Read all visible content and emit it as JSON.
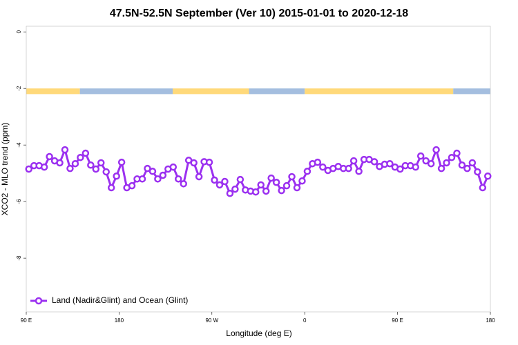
{
  "chart_data": {
    "type": "line",
    "title": "47.5N-52.5N September (Ver 10)   2015-01-01 to 2020-12-18",
    "xlabel": "Longitude (deg E)",
    "ylabel": "XCO2 - MLO trend (ppm)",
    "xlim": [
      90,
      540
    ],
    "ylim": [
      -9.9,
      0.2
    ],
    "xticks": [
      {
        "value": 90,
        "label": "90 E"
      },
      {
        "value": 180,
        "label": "180"
      },
      {
        "value": 270,
        "label": "90 W"
      },
      {
        "value": 360,
        "label": "0"
      },
      {
        "value": 450,
        "label": "90 E"
      },
      {
        "value": 540,
        "label": "180"
      }
    ],
    "yticks": [
      0,
      -2,
      -4,
      -6,
      -8
    ],
    "legend": "lower left",
    "strip": {
      "ylim": [
        -2.2,
        -2
      ],
      "segments": [
        {
          "start": 90,
          "end": 142,
          "color": "#ffd97a"
        },
        {
          "start": 142,
          "end": 232,
          "color": "#a4bedf"
        },
        {
          "start": 232,
          "end": 306,
          "color": "#ffd97a"
        },
        {
          "start": 306,
          "end": 360,
          "color": "#a4bedf"
        },
        {
          "start": 360,
          "end": 504,
          "color": "#ffd97a"
        },
        {
          "start": 504,
          "end": 540,
          "color": "#a4bedf"
        }
      ]
    },
    "x": [
      92.5,
      97.5,
      102.5,
      107.5,
      112.5,
      117.5,
      122.5,
      127.5,
      132.5,
      137.5,
      142.5,
      147.5,
      152.5,
      157.5,
      162.5,
      167.5,
      172.5,
      177.5,
      182.5,
      187.5,
      192.5,
      197.5,
      202.5,
      207.5,
      212.5,
      217.5,
      222.5,
      227.5,
      232.5,
      237.5,
      242.5,
      247.5,
      252.5,
      257.5,
      262.5,
      267.5,
      272.5,
      277.5,
      282.5,
      287.5,
      292.5,
      297.5,
      302.5,
      307.5,
      312.5,
      317.5,
      322.5,
      327.5,
      332.5,
      337.5,
      342.5,
      347.5,
      352.5,
      357.5,
      362.5,
      367.5,
      372.5,
      377.5,
      382.5,
      387.5,
      392.5,
      397.5,
      402.5,
      407.5,
      412.5,
      417.5,
      422.5,
      427.5,
      432.5,
      437.5,
      442.5,
      447.5,
      452.5,
      457.5,
      462.5,
      467.5,
      472.5,
      477.5,
      482.5,
      487.5,
      492.5,
      497.5,
      502.5,
      507.5,
      512.5,
      517.5,
      522.5,
      527.5,
      532.5,
      537.5
    ],
    "series": [
      {
        "name": "Land (Nadir&Glint) and Ocean (Glint)",
        "color": "#9b30f0",
        "values": [
          -4.85,
          -4.73,
          -4.73,
          -4.78,
          -4.41,
          -4.56,
          -4.63,
          -4.17,
          -4.83,
          -4.66,
          -4.44,
          -4.29,
          -4.71,
          -4.85,
          -4.63,
          -4.95,
          -5.51,
          -5.1,
          -4.61,
          -5.51,
          -5.44,
          -5.2,
          -5.2,
          -4.83,
          -4.93,
          -5.2,
          -5.07,
          -4.85,
          -4.78,
          -5.2,
          -5.37,
          -4.54,
          -4.63,
          -5.12,
          -4.59,
          -4.61,
          -5.24,
          -5.41,
          -5.29,
          -5.71,
          -5.56,
          -5.22,
          -5.59,
          -5.63,
          -5.66,
          -5.41,
          -5.63,
          -5.17,
          -5.32,
          -5.61,
          -5.44,
          -5.12,
          -5.51,
          -5.27,
          -4.93,
          -4.66,
          -4.61,
          -4.78,
          -4.9,
          -4.83,
          -4.76,
          -4.83,
          -4.83,
          -4.56,
          -4.93,
          -4.51,
          -4.51,
          -4.59,
          -4.76,
          -4.68,
          -4.66,
          -4.78,
          -4.85,
          -4.73,
          -4.73,
          -4.78,
          -4.39,
          -4.56,
          -4.66,
          -4.17,
          -4.83,
          -4.63,
          -4.44,
          -4.29,
          -4.71,
          -4.83,
          -4.63,
          -4.95,
          -5.51,
          -5.1
        ]
      }
    ]
  }
}
